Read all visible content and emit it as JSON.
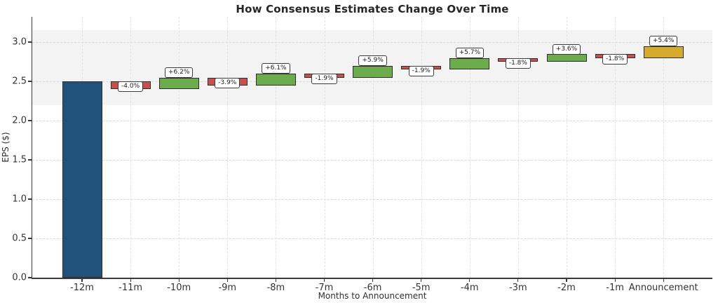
{
  "chart_data": {
    "type": "bar",
    "subtype": "waterfall",
    "title": "How Consensus Estimates Change Over Time",
    "xlabel": "Months to Announcement",
    "ylabel": "EPS ($)",
    "grid": true,
    "legend": null,
    "ylim": [
      0.0,
      3.32
    ],
    "ytick_values": [
      0.0,
      0.5,
      1.0,
      1.5,
      2.0,
      2.5,
      3.0
    ],
    "ytick_labels": [
      "0.0",
      "0.5",
      "1.0",
      "1.5",
      "2.0",
      "2.5",
      "3.0"
    ],
    "categories": [
      "-12m",
      "-11m",
      "-10m",
      "-9m",
      "-8m",
      "-7m",
      "-6m",
      "-5m",
      "-4m",
      "-3m",
      "-2m",
      "-1m",
      "Announcement"
    ],
    "band": {
      "ymin": 2.2,
      "ymax": 3.15
    },
    "baseline_value": 2.5,
    "final_value": 2.95,
    "bars": [
      {
        "category": "-12m",
        "kind": "base",
        "start": 0.0,
        "end": 2.5,
        "label": null
      },
      {
        "category": "-11m",
        "kind": "down",
        "start": 2.5,
        "end": 2.4,
        "label": "-4.0%"
      },
      {
        "category": "-10m",
        "kind": "up",
        "start": 2.4,
        "end": 2.549,
        "label": "+6.2%"
      },
      {
        "category": "-9m",
        "kind": "down",
        "start": 2.549,
        "end": 2.449,
        "label": "-3.9%"
      },
      {
        "category": "-8m",
        "kind": "up",
        "start": 2.449,
        "end": 2.599,
        "label": "+6.1%"
      },
      {
        "category": "-7m",
        "kind": "down",
        "start": 2.599,
        "end": 2.549,
        "label": "-1.9%"
      },
      {
        "category": "-6m",
        "kind": "up",
        "start": 2.549,
        "end": 2.7,
        "label": "+5.9%"
      },
      {
        "category": "-5m",
        "kind": "down",
        "start": 2.7,
        "end": 2.648,
        "label": "-1.9%"
      },
      {
        "category": "-4m",
        "kind": "up",
        "start": 2.648,
        "end": 2.799,
        "label": "+5.7%"
      },
      {
        "category": "-3m",
        "kind": "down",
        "start": 2.799,
        "end": 2.749,
        "label": "-1.8%"
      },
      {
        "category": "-2m",
        "kind": "up",
        "start": 2.749,
        "end": 2.848,
        "label": "+3.6%"
      },
      {
        "category": "-1m",
        "kind": "down",
        "start": 2.848,
        "end": 2.797,
        "label": "-1.8%"
      },
      {
        "category": "Announcement",
        "kind": "final",
        "start": 2.797,
        "end": 2.948,
        "label": "+5.4%"
      }
    ],
    "colors": {
      "base": "#21527c",
      "up": "#6dac4d",
      "down": "#c6504b",
      "final": "#d4ab2c",
      "bar_edge": "#2d2d2d",
      "band": "#f3f3f3",
      "grid_h": "#d8d8d8",
      "grid_v": "#e2e2e2",
      "spine": "#3a3a3a",
      "title_text": "#262626",
      "tick_text": "#333333"
    }
  }
}
